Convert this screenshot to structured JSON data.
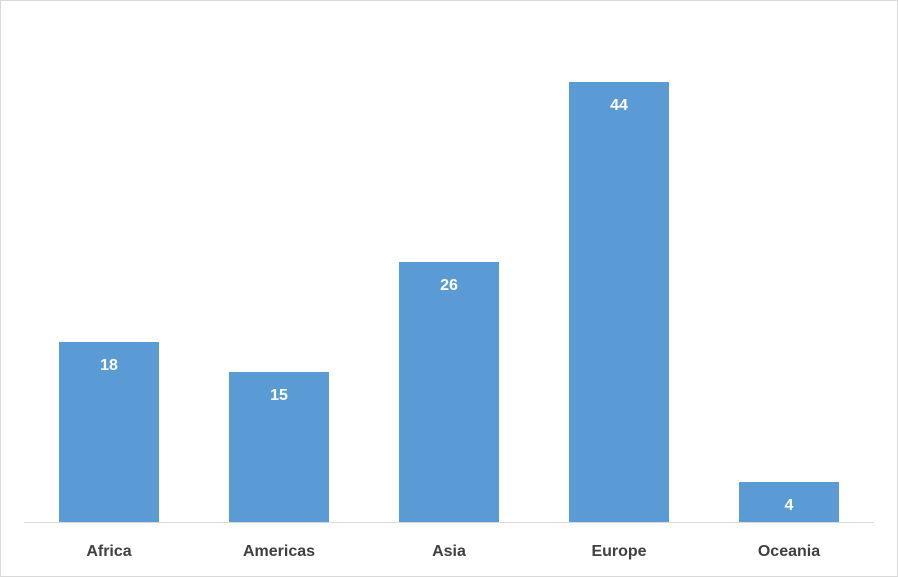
{
  "chart_data": {
    "type": "bar",
    "title": "",
    "xlabel": "",
    "ylabel": "",
    "categories": [
      "Africa",
      "Americas",
      "Asia",
      "Europe",
      "Oceania"
    ],
    "values": [
      18,
      15,
      26,
      44,
      4
    ],
    "ylim": [
      0,
      50
    ],
    "grid": false,
    "legend": "none",
    "data_labels": "inside-end",
    "colors": {
      "bar": "#5b9bd5",
      "axis": "#d9d9d9",
      "tick_text": "#404040",
      "data_label_text": "#ffffff"
    }
  }
}
